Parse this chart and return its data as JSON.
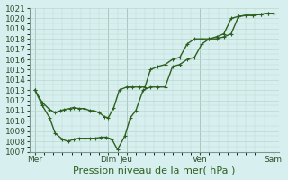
{
  "title": "",
  "xlabel": "Pression niveau de la mer( hPa )",
  "background_color": "#d8efef",
  "plot_bg": "#d8efef",
  "line_color": "#2d6020",
  "grid_color": "#b8d8d0",
  "vline_color": "#7a9a90",
  "ylim_min": 1007,
  "ylim_max": 1021,
  "ytick_min": 1007,
  "ytick_max": 1020,
  "xlabel_fontsize": 8,
  "tick_fontsize": 6.5,
  "line_width": 1.0,
  "marker_size": 2.5,
  "xtick_labels": [
    "Mer",
    "Dim",
    "Jeu",
    "Ven",
    "Sam"
  ],
  "xtick_positions": [
    0,
    4,
    5,
    9,
    13
  ],
  "vline_positions": [
    0,
    4,
    5,
    9,
    13
  ],
  "line1_x": [
    0.0,
    0.4,
    0.8,
    1.1,
    1.4,
    1.6,
    1.9,
    2.1,
    2.4,
    2.7,
    3.0,
    3.2,
    3.5,
    3.8,
    4.0,
    4.3,
    4.6,
    5.0,
    5.3,
    5.7,
    6.0,
    6.3,
    6.7,
    7.1,
    7.5,
    7.9,
    8.3,
    8.7,
    9.1,
    9.5,
    9.9,
    10.3,
    10.7,
    11.1,
    11.5,
    11.9,
    12.3,
    12.7,
    13.0
  ],
  "line1_y": [
    1013.0,
    1011.8,
    1011.1,
    1010.8,
    1011.0,
    1011.1,
    1011.2,
    1011.3,
    1011.2,
    1011.2,
    1011.0,
    1011.0,
    1010.8,
    1010.4,
    1010.3,
    1011.3,
    1013.0,
    1013.3,
    1013.3,
    1013.3,
    1013.3,
    1015.0,
    1015.3,
    1015.5,
    1016.0,
    1016.2,
    1017.5,
    1018.0,
    1018.0,
    1018.0,
    1018.2,
    1018.5,
    1020.0,
    1020.2,
    1020.3,
    1020.3,
    1020.4,
    1020.5,
    1020.5
  ],
  "line2_x": [
    0.0,
    0.4,
    0.8,
    1.1,
    1.5,
    1.8,
    2.1,
    2.4,
    2.7,
    3.0,
    3.3,
    3.6,
    3.9,
    4.2,
    4.5,
    4.9,
    5.2,
    5.5,
    5.9,
    6.3,
    6.7,
    7.1,
    7.5,
    7.9,
    8.3,
    8.7,
    9.1,
    9.5,
    9.9,
    10.3,
    10.7,
    11.1,
    11.5,
    11.9,
    12.3,
    12.7,
    13.0
  ],
  "line2_y": [
    1013.0,
    1011.5,
    1010.3,
    1008.8,
    1008.2,
    1008.0,
    1008.2,
    1008.3,
    1008.3,
    1008.3,
    1008.3,
    1008.4,
    1008.4,
    1008.2,
    1007.2,
    1008.5,
    1010.3,
    1011.0,
    1013.0,
    1013.3,
    1013.3,
    1013.3,
    1015.3,
    1015.5,
    1016.0,
    1016.2,
    1017.5,
    1018.0,
    1018.0,
    1018.2,
    1018.5,
    1020.2,
    1020.3,
    1020.3,
    1020.4,
    1020.5,
    1020.5
  ]
}
